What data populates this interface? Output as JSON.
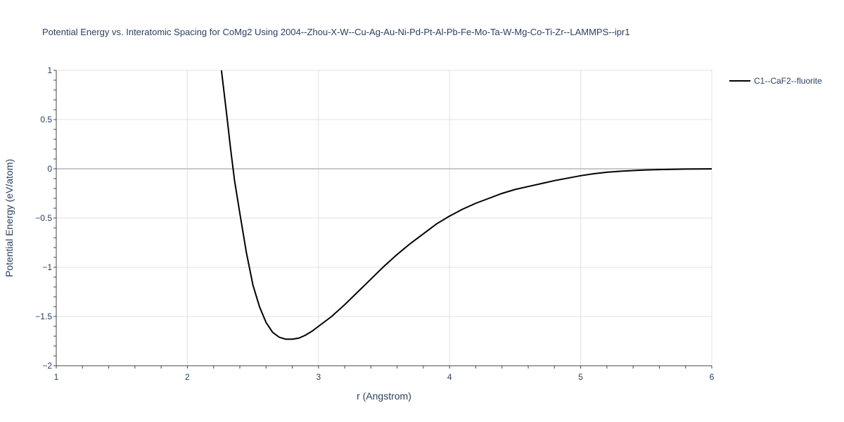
{
  "chart_data": {
    "type": "line",
    "title": "Potential Energy vs. Interatomic Spacing for CoMg2 Using 2004--Zhou-X-W--Cu-Ag-Au-Ni-Pd-Pt-Al-Pb-Fe-Mo-Ta-W-Mg-Co-Ti-Zr--LAMMPS--ipr1",
    "xlabel": "r (Angstrom)",
    "ylabel": "Potential Energy (eV/atom)",
    "xlim": [
      1,
      6
    ],
    "ylim": [
      -2,
      1
    ],
    "x_ticks": [
      "1",
      "2",
      "3",
      "4",
      "5",
      "6"
    ],
    "y_ticks": [
      "1",
      "0.5",
      "0",
      "−0.5",
      "−1",
      "−1.5",
      "−2"
    ],
    "grid": true,
    "legend_position": "top-right",
    "series": [
      {
        "name": "C1--CaF2--fluorite",
        "color": "#000000",
        "x": [
          2.26,
          2.3,
          2.33,
          2.36,
          2.4,
          2.45,
          2.5,
          2.55,
          2.6,
          2.65,
          2.7,
          2.75,
          2.8,
          2.85,
          2.9,
          2.95,
          3.0,
          3.1,
          3.2,
          3.3,
          3.4,
          3.5,
          3.6,
          3.7,
          3.8,
          3.9,
          4.0,
          4.1,
          4.2,
          4.3,
          4.4,
          4.5,
          4.6,
          4.7,
          4.8,
          4.9,
          5.0,
          5.1,
          5.2,
          5.3,
          5.4,
          5.5,
          5.6,
          5.7,
          5.8,
          5.9,
          6.0
        ],
        "y": [
          1.0,
          0.55,
          0.2,
          -0.12,
          -0.45,
          -0.85,
          -1.18,
          -1.4,
          -1.56,
          -1.66,
          -1.71,
          -1.73,
          -1.73,
          -1.72,
          -1.69,
          -1.65,
          -1.6,
          -1.5,
          -1.38,
          -1.25,
          -1.12,
          -0.99,
          -0.87,
          -0.76,
          -0.66,
          -0.56,
          -0.48,
          -0.41,
          -0.35,
          -0.3,
          -0.25,
          -0.21,
          -0.18,
          -0.15,
          -0.12,
          -0.095,
          -0.07,
          -0.05,
          -0.035,
          -0.025,
          -0.018,
          -0.012,
          -0.008,
          -0.005,
          -0.003,
          -0.002,
          -0.001
        ]
      }
    ]
  }
}
